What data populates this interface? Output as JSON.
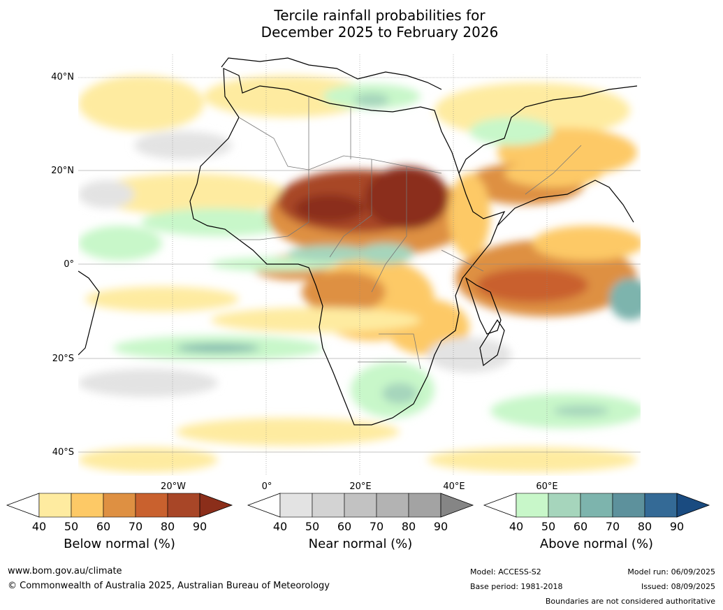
{
  "title": {
    "line1": "Tercile rainfall probabilities for",
    "line2": "December 2025 to February 2026"
  },
  "map": {
    "lat_labels": [
      "40°N",
      "20°N",
      "0°",
      "20°S",
      "40°S"
    ],
    "lon_labels": [
      "20°W",
      "0°",
      "20°E",
      "40°E",
      "60°E"
    ]
  },
  "colorbars": [
    {
      "name": "below",
      "title": "Below normal (%)",
      "ticks": [
        "40",
        "50",
        "60",
        "70",
        "80",
        "90"
      ],
      "colors": [
        "#ffffff",
        "#feeba0",
        "#fdc966",
        "#de9042",
        "#c9612e",
        "#a84627",
        "#8b2e1a"
      ]
    },
    {
      "name": "near",
      "title": "Near normal (%)",
      "ticks": [
        "40",
        "50",
        "60",
        "70",
        "80",
        "90"
      ],
      "colors": [
        "#ffffff",
        "#e3e3e3",
        "#d3d3d3",
        "#c2c2c2",
        "#b3b3b3",
        "#a3a3a3",
        "#858585"
      ]
    },
    {
      "name": "above",
      "title": "Above normal (%)",
      "ticks": [
        "40",
        "50",
        "60",
        "70",
        "80",
        "90"
      ],
      "colors": [
        "#ffffff",
        "#c8f7c9",
        "#a6d5bc",
        "#7db4ad",
        "#5d919c",
        "#346a96",
        "#1a4b80"
      ]
    }
  ],
  "footer": {
    "url": "www.bom.gov.au/climate",
    "copyright": "© Commonwealth of Australia 2025, Australian Bureau of Meteorology",
    "model": "Model: ACCESS-S2",
    "base_period": "Base period: 1981-2018",
    "model_run": "Model run: 06/09/2025",
    "issued": "Issued: 08/09/2025",
    "disclaimer": "Boundaries are not considered authoritative"
  }
}
